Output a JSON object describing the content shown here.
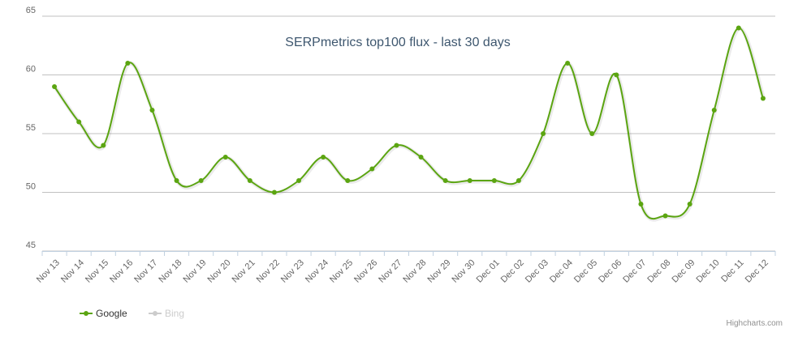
{
  "chart_data": {
    "type": "line",
    "title": "SERPmetrics top100 flux - last 30 days",
    "categories": [
      "Nov 13",
      "Nov 14",
      "Nov 15",
      "Nov 16",
      "Nov 17",
      "Nov 18",
      "Nov 19",
      "Nov 20",
      "Nov 21",
      "Nov 22",
      "Nov 23",
      "Nov 24",
      "Nov 25",
      "Nov 26",
      "Nov 27",
      "Nov 28",
      "Nov 29",
      "Nov 30",
      "Dec 01",
      "Dec 02",
      "Dec 03",
      "Dec 04",
      "Dec 05",
      "Dec 06",
      "Dec 07",
      "Dec 08",
      "Dec 09",
      "Dec 10",
      "Dec 11",
      "Dec 12"
    ],
    "series": [
      {
        "name": "Google",
        "color": "#5ba511",
        "values": [
          59,
          56,
          54,
          61,
          57,
          51,
          51,
          53,
          51,
          50,
          51,
          53,
          51,
          52,
          54,
          53,
          51,
          51,
          51,
          51,
          55,
          61,
          55,
          60,
          49,
          48,
          49,
          57,
          64,
          58
        ]
      },
      {
        "name": "Bing",
        "color": "#cccccc",
        "visible": false,
        "values": [
          null,
          null,
          null,
          null,
          null,
          null,
          null,
          null,
          null,
          null,
          null,
          null,
          null,
          null,
          null,
          null,
          null,
          null,
          null,
          null,
          null,
          null,
          null,
          null,
          null,
          null,
          null,
          null,
          null,
          null
        ]
      }
    ],
    "ylim": [
      45,
      65
    ],
    "yticks": [
      45,
      50,
      55,
      60,
      65
    ],
    "grid": true,
    "smooth": true,
    "legend": "bottom-left",
    "credits": "Highcharts.com"
  }
}
